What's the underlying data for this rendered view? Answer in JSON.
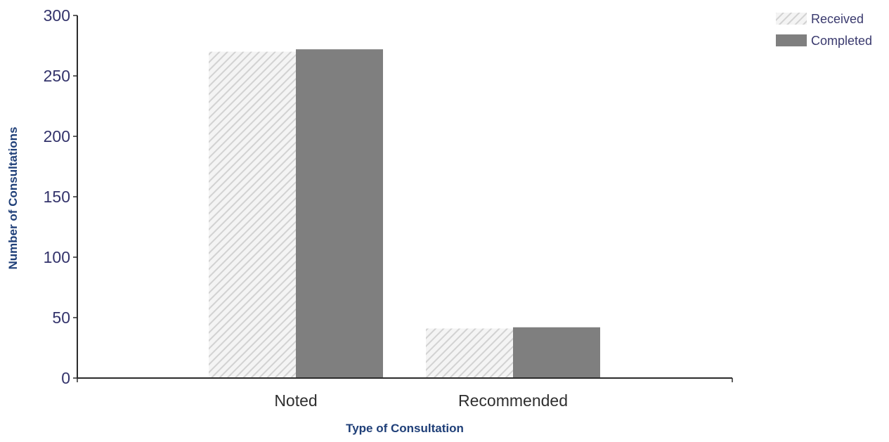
{
  "chart_data": {
    "type": "bar",
    "categories": [
      "Noted",
      "Recommended"
    ],
    "series": [
      {
        "name": "Received",
        "values": [
          270,
          41
        ],
        "color": "#d8d8d8",
        "pattern": "diagonal-hatch"
      },
      {
        "name": "Completed",
        "values": [
          272,
          42
        ],
        "color": "#7f7f7f",
        "pattern": "solid"
      }
    ],
    "xlabel": "Type of Consultation",
    "ylabel": "Number of Consultations",
    "ylim": [
      0,
      300
    ],
    "yticks": [
      "0",
      "50",
      "100",
      "150",
      "200",
      "250",
      "300"
    ],
    "grid": false,
    "legend_position": "top-right"
  }
}
